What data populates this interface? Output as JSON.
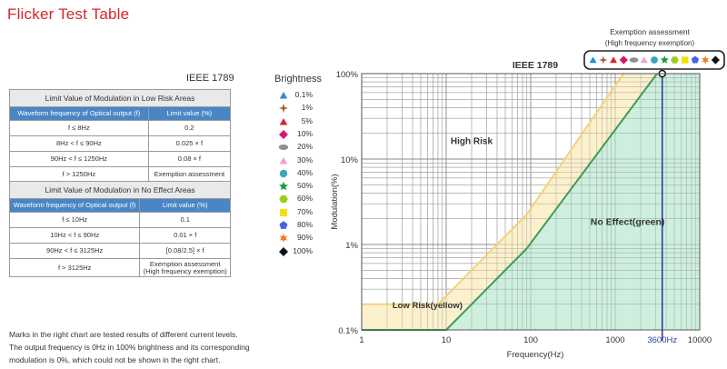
{
  "page_title": "Flicker Test Table",
  "ieee_label": "IEEE 1789",
  "table_low_risk": {
    "title": "Limit Value of Modulation in Low Risk Areas",
    "col1": "Waveform frequency of Optical output (f)",
    "col2": "Limit value (%)",
    "rows": [
      {
        "freq": "f ≤ 8Hz",
        "limit": "0.2"
      },
      {
        "freq": "8Hz < f ≤ 90Hz",
        "limit": "0.025 × f"
      },
      {
        "freq": "90Hz < f ≤ 1250Hz",
        "limit": "0.08 × f"
      },
      {
        "freq": "f > 1250Hz",
        "limit": "Exemption assessment"
      }
    ]
  },
  "table_no_effect": {
    "title": "Limit Value of Modulation in No Effect Areas",
    "col1": "Waveform frequency of Optical output (f)",
    "col2": "Limit value (%)",
    "rows": [
      {
        "freq": "f ≤ 10Hz",
        "limit": "0.1"
      },
      {
        "freq": "10Hz < f ≤ 90Hz",
        "limit": "0.01 × f"
      },
      {
        "freq": "90Hz < f ≤ 3125Hz",
        "limit": "[0.08/2.5] × f"
      },
      {
        "freq": "f > 3125Hz",
        "limit": "Exemption assessment",
        "limit2": "(High frequency exemption)"
      }
    ]
  },
  "note": {
    "line1": "Marks in the right chart are tested results of different current levels.",
    "line2": "The output frequency is 0Hz in 100% brightness and its corresponding",
    "line3": "modulation is 0%, which could not be shown in the right chart."
  },
  "legend": {
    "title": "Brightness",
    "items": [
      {
        "label": "0.1%",
        "shape": "triangle",
        "color": "#2a8fd6"
      },
      {
        "label": "1%",
        "shape": "star4",
        "color": "#a0673a"
      },
      {
        "label": "5%",
        "shape": "triangle",
        "color": "#d6252b"
      },
      {
        "label": "10%",
        "shape": "diamond",
        "color": "#d6166f"
      },
      {
        "label": "20%",
        "shape": "ellipse",
        "color": "#8f8f8f"
      },
      {
        "label": "30%",
        "shape": "triangle",
        "color": "#f5a0c5"
      },
      {
        "label": "40%",
        "shape": "circle",
        "color": "#3aa7b8"
      },
      {
        "label": "50%",
        "shape": "star5",
        "color": "#159a4a"
      },
      {
        "label": "60%",
        "shape": "hexagon",
        "color": "#9ccc1c"
      },
      {
        "label": "70%",
        "shape": "square",
        "color": "#f5e000"
      },
      {
        "label": "80%",
        "shape": "pentagon",
        "color": "#4a5fe6"
      },
      {
        "label": "90%",
        "shape": "star6",
        "color": "#f07a20"
      },
      {
        "label": "100%",
        "shape": "diamond",
        "color": "#111111"
      }
    ]
  },
  "chart_data": {
    "type": "line",
    "title": "IEEE 1789",
    "xlabel": "Frequency(Hz)",
    "ylabel": "Modulation(%)",
    "x_scale": "log",
    "y_scale": "log",
    "xlim": [
      1,
      10000
    ],
    "ylim": [
      0.1,
      100
    ],
    "x_ticks": [
      1,
      10,
      100,
      1000,
      10000
    ],
    "x_tick_labels": [
      "1",
      "10",
      "100",
      "1000",
      "10000"
    ],
    "y_ticks": [
      0.1,
      1,
      10,
      100
    ],
    "y_tick_labels": [
      "0.1%",
      "1%",
      "10%",
      "100%"
    ],
    "grid": true,
    "series": [
      {
        "name": "Low Risk(yellow)",
        "color": "#f3d27a",
        "fill": "#fcefc4",
        "x": [
          1,
          8,
          90,
          1250
        ],
        "y": [
          0.2,
          0.2,
          2.25,
          100
        ]
      },
      {
        "name": "No Effect(green)",
        "color": "#3d9b5a",
        "fill": "#c6ecd8",
        "x": [
          1,
          10,
          90,
          3125
        ],
        "y": [
          0.1,
          0.1,
          0.9,
          100
        ]
      }
    ],
    "region_labels": [
      {
        "text": "High Risk",
        "x": 20,
        "y": 15
      },
      {
        "text": "No Effect(green)",
        "x": 1400,
        "y": 1.7
      },
      {
        "text": "Low Risk(yellow)",
        "x": 6,
        "y": 0.18
      }
    ],
    "marker": {
      "x": 3600,
      "y": 100,
      "label": "3600Hz",
      "color": "#2c3f9c"
    },
    "annotation": {
      "title": "Exemption assessment",
      "subtitle": "(High frequency exemption)"
    }
  }
}
